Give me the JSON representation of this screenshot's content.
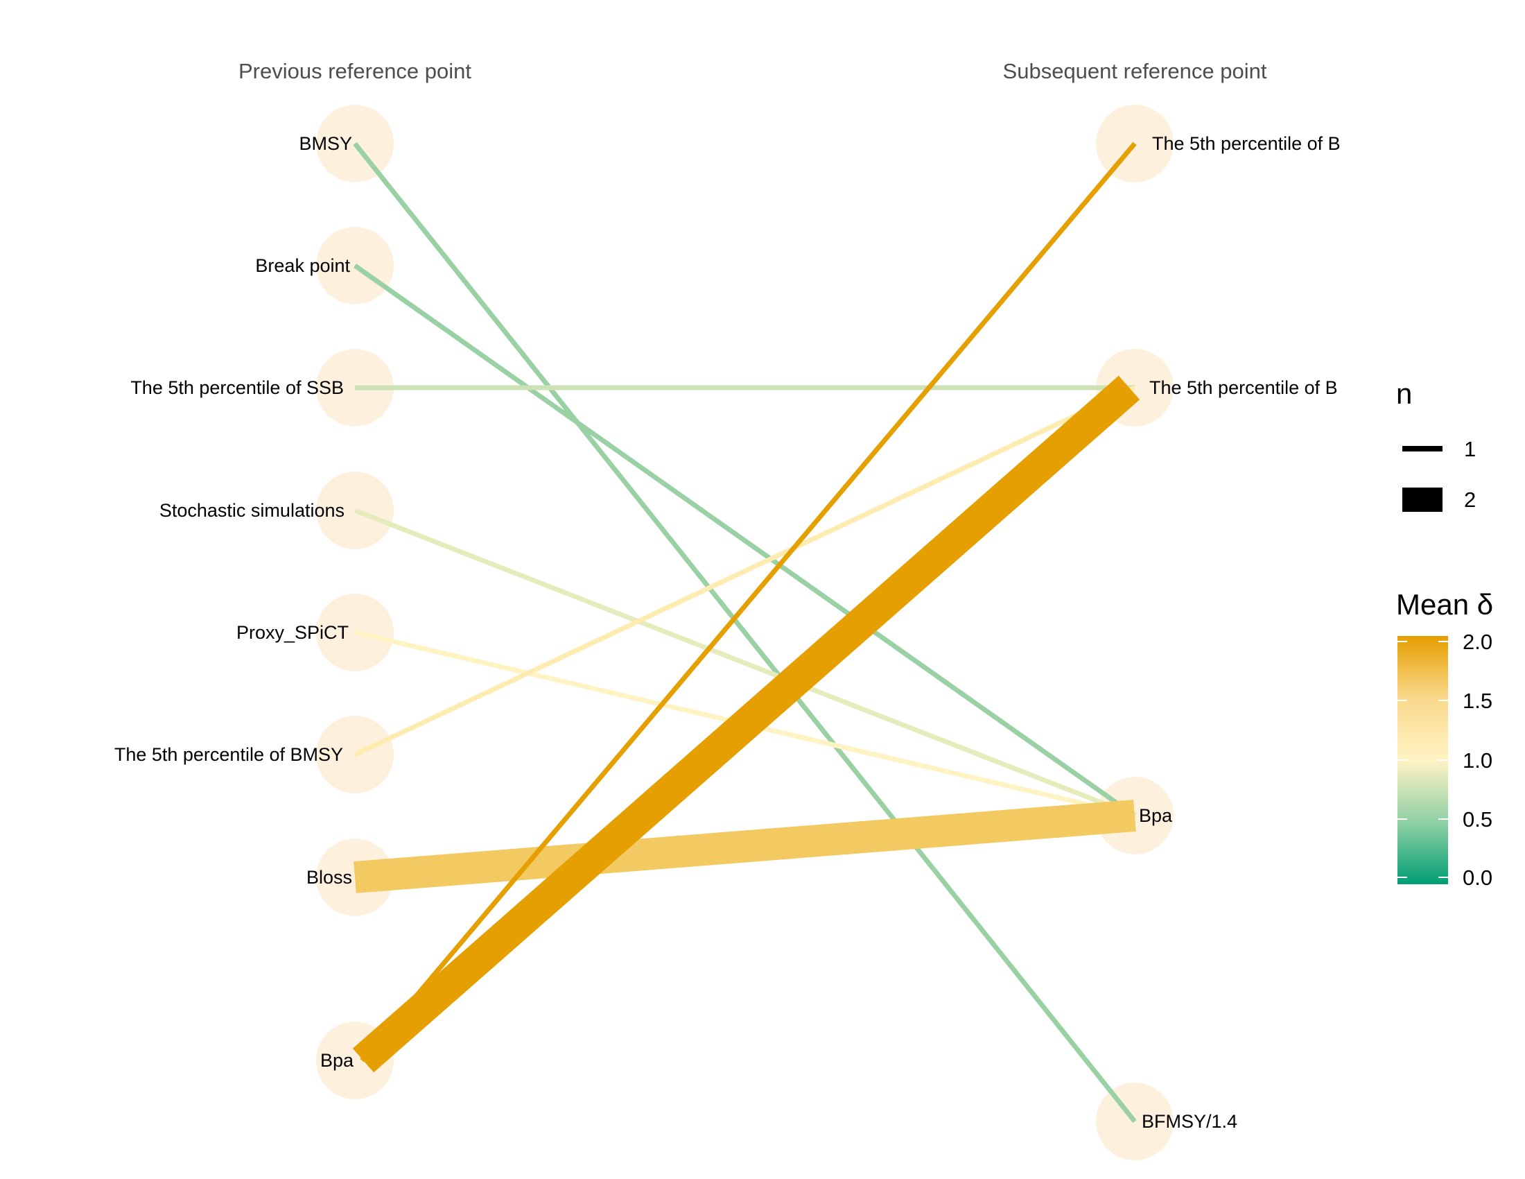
{
  "chart_data": {
    "type": "bipartite_flow",
    "left_title": "Previous reference point",
    "right_title": "Subsequent reference point",
    "left_nodes": [
      "BMSY",
      "Break point",
      "The 5th percentile of SSB",
      "Stochastic simulations",
      "Proxy_SPiCT",
      "The 5th percentile of BMSY",
      "Bloss",
      "Bpa"
    ],
    "right_nodes": [
      "The 5th percentile of B",
      "The 5th percentile of B",
      "Bpa",
      "BFMSY/1.4"
    ],
    "links": [
      {
        "from": 0,
        "to": 3,
        "n": 1,
        "mean_delta": 0.6
      },
      {
        "from": 1,
        "to": 2,
        "n": 1,
        "mean_delta": 0.6
      },
      {
        "from": 2,
        "to": 1,
        "n": 1,
        "mean_delta": 0.8
      },
      {
        "from": 3,
        "to": 2,
        "n": 1,
        "mean_delta": 0.9
      },
      {
        "from": 4,
        "to": 2,
        "n": 1,
        "mean_delta": 1.0
      },
      {
        "from": 5,
        "to": 1,
        "n": 1,
        "mean_delta": 1.1
      },
      {
        "from": 6,
        "to": 2,
        "n": 2,
        "mean_delta": 1.5
      },
      {
        "from": 7,
        "to": 1,
        "n": 2,
        "mean_delta": 2.0
      },
      {
        "from": 7,
        "to": 0,
        "n": 1,
        "mean_delta": 2.0
      }
    ],
    "size_legend": {
      "title": "n",
      "entries": [
        "1",
        "2"
      ]
    },
    "color_legend": {
      "title": "Mean δ",
      "ticks": [
        "0.0",
        "0.5",
        "1.0",
        "1.5",
        "2.0"
      ],
      "range": [
        0,
        2
      ],
      "colors": [
        "#009E73",
        "#FFF3C4",
        "#E69F00"
      ]
    },
    "node_color": "#FDF1DE"
  }
}
